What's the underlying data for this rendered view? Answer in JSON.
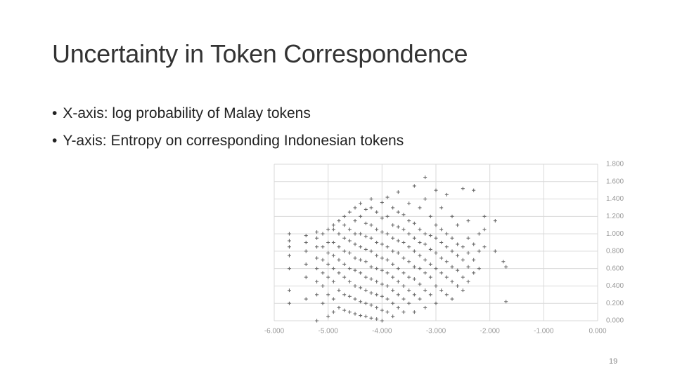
{
  "title": "Uncertainty in Token Correspondence",
  "bullets": [
    "X-axis: log probability of Malay tokens",
    "Y-axis: Entropy on corresponding Indonesian tokens"
  ],
  "slide_number": "19",
  "chart_data": {
    "type": "scatter",
    "color": "#6b6b6b",
    "grid": true,
    "x": [
      -5.72,
      -5.72,
      -5.72,
      -5.72,
      -5.72,
      -5.72,
      -5.72,
      -5.41,
      -5.41,
      -5.41,
      -5.41,
      -5.41,
      -5.41,
      -5.21,
      -5.21,
      -5.21,
      -5.21,
      -5.21,
      -5.21,
      -5.21,
      -5.21,
      -5.1,
      -5.1,
      -5.1,
      -5.1,
      -5.1,
      -5.1,
      -5.0,
      -5.0,
      -5.0,
      -5.0,
      -5.0,
      -5.0,
      -5.0,
      -4.9,
      -4.9,
      -4.9,
      -4.9,
      -4.9,
      -4.9,
      -4.9,
      -4.9,
      -4.8,
      -4.8,
      -4.8,
      -4.8,
      -4.8,
      -4.8,
      -4.8,
      -4.7,
      -4.7,
      -4.7,
      -4.7,
      -4.7,
      -4.7,
      -4.7,
      -4.7,
      -4.6,
      -4.6,
      -4.6,
      -4.6,
      -4.6,
      -4.6,
      -4.6,
      -4.6,
      -4.5,
      -4.5,
      -4.5,
      -4.5,
      -4.5,
      -4.5,
      -4.5,
      -4.5,
      -4.5,
      -4.4,
      -4.4,
      -4.4,
      -4.4,
      -4.4,
      -4.4,
      -4.4,
      -4.4,
      -4.4,
      -4.3,
      -4.3,
      -4.3,
      -4.3,
      -4.3,
      -4.3,
      -4.3,
      -4.3,
      -4.3,
      -4.2,
      -4.2,
      -4.2,
      -4.2,
      -4.2,
      -4.2,
      -4.2,
      -4.2,
      -4.2,
      -4.2,
      -4.1,
      -4.1,
      -4.1,
      -4.1,
      -4.1,
      -4.1,
      -4.1,
      -4.1,
      -4.1,
      -4.0,
      -4.0,
      -4.0,
      -4.0,
      -4.0,
      -4.0,
      -4.0,
      -4.0,
      -4.0,
      -4.0,
      -3.9,
      -3.9,
      -3.9,
      -3.9,
      -3.9,
      -3.9,
      -3.9,
      -3.9,
      -3.9,
      -3.8,
      -3.8,
      -3.8,
      -3.8,
      -3.8,
      -3.8,
      -3.8,
      -3.8,
      -3.8,
      -3.7,
      -3.7,
      -3.7,
      -3.7,
      -3.7,
      -3.7,
      -3.7,
      -3.7,
      -3.7,
      -3.6,
      -3.6,
      -3.6,
      -3.6,
      -3.6,
      -3.6,
      -3.6,
      -3.6,
      -3.5,
      -3.5,
      -3.5,
      -3.5,
      -3.5,
      -3.5,
      -3.5,
      -3.5,
      -3.4,
      -3.4,
      -3.4,
      -3.4,
      -3.4,
      -3.4,
      -3.4,
      -3.4,
      -3.3,
      -3.3,
      -3.3,
      -3.3,
      -3.3,
      -3.3,
      -3.3,
      -3.2,
      -3.2,
      -3.2,
      -3.2,
      -3.2,
      -3.2,
      -3.2,
      -3.2,
      -3.1,
      -3.1,
      -3.1,
      -3.1,
      -3.1,
      -3.1,
      -3.0,
      -3.0,
      -3.0,
      -3.0,
      -3.0,
      -3.0,
      -3.0,
      -2.9,
      -2.9,
      -2.9,
      -2.9,
      -2.9,
      -2.9,
      -2.8,
      -2.8,
      -2.8,
      -2.8,
      -2.8,
      -2.8,
      -2.7,
      -2.7,
      -2.7,
      -2.7,
      -2.7,
      -2.7,
      -2.6,
      -2.6,
      -2.6,
      -2.6,
      -2.6,
      -2.5,
      -2.5,
      -2.5,
      -2.5,
      -2.5,
      -2.4,
      -2.4,
      -2.4,
      -2.4,
      -2.4,
      -2.3,
      -2.3,
      -2.3,
      -2.3,
      -2.2,
      -2.2,
      -2.2,
      -2.1,
      -2.1,
      -2.1,
      -1.9,
      -1.9,
      -1.75,
      -1.7,
      -1.7
    ],
    "values": [
      0.2,
      0.35,
      0.6,
      0.75,
      0.85,
      0.92,
      1.0,
      0.25,
      0.5,
      0.65,
      0.8,
      0.9,
      0.98,
      0,
      0.3,
      0.45,
      0.6,
      0.72,
      0.85,
      0.95,
      1.02,
      0.2,
      0.4,
      0.55,
      0.7,
      0.85,
      1.0,
      0.05,
      0.3,
      0.5,
      0.65,
      0.78,
      0.9,
      1.05,
      0.1,
      0.25,
      0.45,
      0.6,
      0.75,
      0.9,
      1.05,
      1.1,
      0.15,
      0.35,
      0.55,
      0.7,
      0.85,
      1.0,
      1.15,
      0.12,
      0.3,
      0.5,
      0.65,
      0.8,
      0.95,
      1.1,
      1.2,
      0.1,
      0.28,
      0.45,
      0.6,
      0.78,
      0.92,
      1.05,
      1.25,
      0.08,
      0.25,
      0.4,
      0.58,
      0.72,
      0.88,
      1.0,
      1.15,
      1.3,
      0.06,
      0.22,
      0.38,
      0.55,
      0.7,
      0.85,
      1.0,
      1.2,
      1.35,
      0.05,
      0.2,
      0.35,
      0.5,
      0.68,
      0.82,
      0.97,
      1.12,
      1.28,
      0.03,
      0.18,
      0.32,
      0.48,
      0.62,
      0.8,
      0.95,
      1.1,
      1.3,
      1.4,
      0.02,
      0.15,
      0.3,
      0.45,
      0.6,
      0.75,
      0.9,
      1.05,
      1.25,
      0,
      0.12,
      0.28,
      0.42,
      0.58,
      0.72,
      0.88,
      1.02,
      1.18,
      1.36,
      0.1,
      0.25,
      0.4,
      0.55,
      0.7,
      0.85,
      1.0,
      1.2,
      1.42,
      0.05,
      0.2,
      0.35,
      0.5,
      0.65,
      0.8,
      0.95,
      1.1,
      1.3,
      0.15,
      0.3,
      0.45,
      0.6,
      0.78,
      0.92,
      1.08,
      1.25,
      1.48,
      0.1,
      0.25,
      0.4,
      0.55,
      0.72,
      0.9,
      1.05,
      1.22,
      0.2,
      0.35,
      0.5,
      0.68,
      0.85,
      1.0,
      1.15,
      1.35,
      0.1,
      0.3,
      0.48,
      0.62,
      0.8,
      0.95,
      1.12,
      1.55,
      0.25,
      0.42,
      0.6,
      0.75,
      0.9,
      1.05,
      1.3,
      0.15,
      0.35,
      0.55,
      0.7,
      0.88,
      1.0,
      1.4,
      1.65,
      0.3,
      0.5,
      0.65,
      0.82,
      0.98,
      1.2,
      0.2,
      0.4,
      0.6,
      0.78,
      0.95,
      1.1,
      1.5,
      0.35,
      0.55,
      0.72,
      0.9,
      1.05,
      1.3,
      0.3,
      0.5,
      0.68,
      0.85,
      1.0,
      1.45,
      0.25,
      0.45,
      0.62,
      0.8,
      0.95,
      1.2,
      0.4,
      0.58,
      0.75,
      0.88,
      1.1,
      0.35,
      0.5,
      0.7,
      0.85,
      1.52,
      0.45,
      0.62,
      0.78,
      0.95,
      1.15,
      0.55,
      0.7,
      0.88,
      1.5,
      0.6,
      0.8,
      1.0,
      0.85,
      1.05,
      1.2,
      0.8,
      1.15,
      0.68,
      0.22,
      0.62
    ],
    "xlim": [
      -6,
      0
    ],
    "xticks": [
      {
        "value": -6,
        "label": "-6.000"
      },
      {
        "value": -5,
        "label": "-5.000"
      },
      {
        "value": -4,
        "label": "-4.000"
      },
      {
        "value": -3,
        "label": "-3.000"
      },
      {
        "value": -2,
        "label": "-2.000"
      },
      {
        "value": -1,
        "label": "-1.000"
      },
      {
        "value": 0,
        "label": "0.000"
      }
    ],
    "ylim": [
      0,
      1.8
    ],
    "yticks": [
      {
        "value": 0,
        "label": "0.000"
      },
      {
        "value": 0.2,
        "label": "0.200"
      },
      {
        "value": 0.4,
        "label": "0.400"
      },
      {
        "value": 0.6,
        "label": "0.600"
      },
      {
        "value": 0.8,
        "label": "0.800"
      },
      {
        "value": 1.0,
        "label": "1.000"
      },
      {
        "value": 1.2,
        "label": "1.200"
      },
      {
        "value": 1.4,
        "label": "1.400"
      },
      {
        "value": 1.6,
        "label": "1.600"
      },
      {
        "value": 1.8,
        "label": "1.800"
      }
    ]
  }
}
